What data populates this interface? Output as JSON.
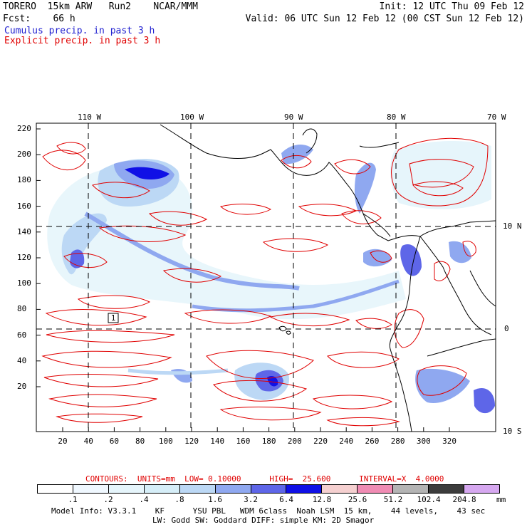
{
  "header": {
    "line1_left": "TORERO  15km ARW   Run2    NCAR/MMM",
    "line1_right": "Init: 12 UTC Thu 09 Feb 12",
    "line2_left": "Fcst:    66 h",
    "line2_right": "Valid: 06 UTC Sun 12 Feb 12 (00 CST Sun 12 Feb 12)",
    "cumulus_label": "Cumulus precip. in past 3 h",
    "explicit_label": "Explicit precip. in past 3 h",
    "cumulus_color": "#2020d0",
    "explicit_color": "#e00000"
  },
  "map": {
    "top_longitudes": [
      "110 W",
      "100 W",
      "90 W",
      "80 W",
      "70 W"
    ],
    "right_latitudes": [
      "10 N",
      "0",
      "10 S"
    ],
    "y_grid_ticks": [
      "220",
      "200",
      "180",
      "160",
      "140",
      "120",
      "100",
      "80",
      "60",
      "40",
      "20"
    ],
    "x_grid_ticks": [
      "20",
      "40",
      "60",
      "80",
      "100",
      "120",
      "140",
      "160",
      "180",
      "200",
      "220",
      "240",
      "260",
      "280",
      "300",
      "320"
    ],
    "box_label": "1"
  },
  "contour_info": "CONTOURS:  UNITS=mm  LOW= 0.10000      HIGH=  25.600      INTERVAL=X  4.0000",
  "colorbar": {
    "labels": [
      ".1",
      ".2",
      ".4",
      ".8",
      "1.6",
      "3.2",
      "6.4",
      "12.8",
      "25.6",
      "51.2",
      "102.4",
      "204.8"
    ],
    "unit": "mm",
    "colors": [
      "#ffffff",
      "#f0f8ff",
      "#e6f5fb",
      "#d6eef8",
      "#bcd8f5",
      "#8fa8f0",
      "#5e66e8",
      "#1010e6",
      "#f5d0d0",
      "#f08cb4",
      "#b4b4b4",
      "#3c3c3c",
      "#d6a8f0"
    ]
  },
  "footer": {
    "line1": "Model Info: V3.3.1    KF      YSU PBL   WDM 6class  Noah LSM  15 km,    44 levels,    43 sec",
    "line2": "LW: Godd SW: Goddard DIFF: simple KM: 2D Smagor"
  }
}
